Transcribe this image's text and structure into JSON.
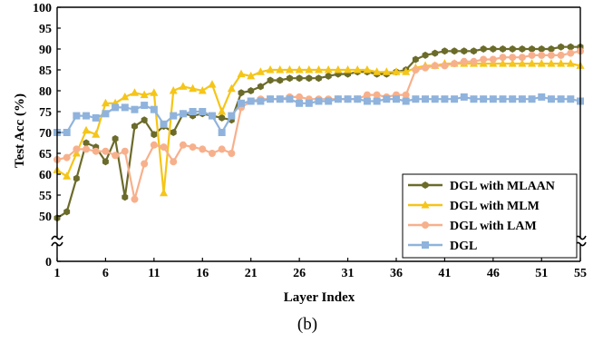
{
  "caption": "(b)",
  "chart_data": {
    "type": "line",
    "xlabel": "Layer Index",
    "ylabel": "Test Acc (%)",
    "xlim": [
      1,
      55
    ],
    "ylim": [
      0,
      100
    ],
    "broken_y_axis": true,
    "y_break_between": [
      0,
      45
    ],
    "xticks": [
      1,
      6,
      11,
      16,
      21,
      26,
      31,
      36,
      41,
      46,
      51,
      55
    ],
    "yticks": [
      0,
      50,
      55,
      60,
      65,
      70,
      75,
      80,
      85,
      90,
      95,
      100
    ],
    "legend_position": "bottom-right",
    "grid": false,
    "x": [
      1,
      2,
      3,
      4,
      5,
      6,
      7,
      8,
      9,
      10,
      11,
      12,
      13,
      14,
      15,
      16,
      17,
      18,
      19,
      20,
      21,
      22,
      23,
      24,
      25,
      26,
      27,
      28,
      29,
      30,
      31,
      32,
      33,
      34,
      35,
      36,
      37,
      38,
      39,
      40,
      41,
      42,
      43,
      44,
      45,
      46,
      47,
      48,
      49,
      50,
      51,
      52,
      53,
      54,
      55
    ],
    "series": [
      {
        "name": "DGL with MLAAN",
        "color": "#6b6b2a",
        "marker": "hexagon",
        "values": [
          49.5,
          51,
          59,
          67.5,
          66.5,
          63,
          68.5,
          54.5,
          71.5,
          73,
          69.5,
          71.5,
          70,
          74.5,
          74,
          74.5,
          74,
          73.5,
          73,
          79.5,
          80,
          81,
          82.5,
          82.5,
          83,
          83,
          83,
          83,
          83.5,
          84,
          84,
          84.5,
          84.5,
          84,
          84,
          84.5,
          85,
          87.5,
          88.5,
          89,
          89.5,
          89.5,
          89.5,
          89.5,
          90,
          90,
          90,
          90,
          90,
          90,
          90,
          90,
          90.5,
          90.5,
          90.5
        ]
      },
      {
        "name": "DGL with MLM",
        "color": "#f5c518",
        "marker": "triangle",
        "values": [
          61,
          59.5,
          65,
          70.5,
          69.5,
          77,
          77,
          78.5,
          79.5,
          79,
          79.5,
          55.5,
          80,
          81,
          80.5,
          80,
          81.5,
          75,
          80.5,
          84,
          83.5,
          84.5,
          85,
          85,
          85,
          85,
          85,
          85,
          85,
          85,
          85,
          85,
          85,
          84.5,
          84.5,
          84.5,
          84.5,
          85.5,
          86,
          86,
          86.5,
          86.5,
          86.5,
          86.5,
          86.5,
          86.5,
          86.5,
          86.5,
          86.5,
          86.5,
          86.5,
          86.5,
          86.5,
          86.5,
          86
        ]
      },
      {
        "name": "DGL with LAM",
        "color": "#f7b08c",
        "marker": "circle",
        "values": [
          63.5,
          64,
          66,
          66,
          65.5,
          65.5,
          64.5,
          65.5,
          54,
          62.5,
          67,
          66.5,
          63,
          67,
          66.5,
          66,
          65,
          66,
          65,
          76,
          77.5,
          78,
          78,
          78,
          78.5,
          78.5,
          78,
          78,
          78,
          78,
          78,
          78,
          79,
          79,
          78.5,
          79,
          79,
          85,
          85.5,
          86,
          86,
          86.5,
          87,
          87,
          87.5,
          87.5,
          88,
          88,
          88,
          88.5,
          88.5,
          88.5,
          88.5,
          89,
          89.5
        ]
      },
      {
        "name": "DGL",
        "color": "#8fb3dc",
        "marker": "square",
        "values": [
          70,
          70,
          74,
          74,
          73.5,
          74.5,
          76,
          76,
          75.5,
          76.5,
          75.5,
          72,
          74,
          74.5,
          75,
          75,
          74,
          70,
          74,
          77,
          77.5,
          77.5,
          78,
          78,
          78,
          77,
          77,
          77.5,
          77.5,
          78,
          78,
          78,
          77.5,
          77.5,
          78,
          78,
          77.5,
          78,
          78,
          78,
          78,
          78,
          78.5,
          78,
          78,
          78,
          78,
          78,
          78,
          78,
          78.5,
          78,
          78,
          78,
          77.5
        ]
      }
    ]
  }
}
